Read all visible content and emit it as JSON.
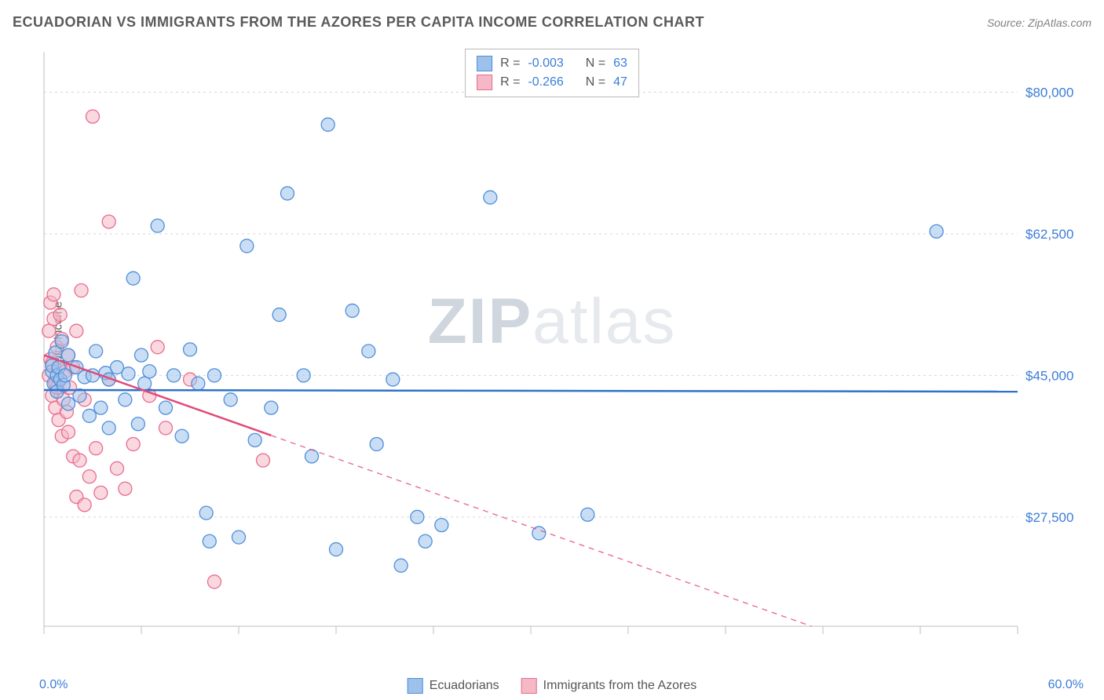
{
  "header": {
    "title": "ECUADORIAN VS IMMIGRANTS FROM THE AZORES PER CAPITA INCOME CORRELATION CHART",
    "source_prefix": "Source: ",
    "source_name": "ZipAtlas.com"
  },
  "watermark": {
    "part1": "ZIP",
    "part2": "atlas"
  },
  "y_axis": {
    "label": "Per Capita Income"
  },
  "chart": {
    "type": "scatter",
    "background_color": "#ffffff",
    "grid_color": "#d6d6d6",
    "axis_color": "#bfbfbf",
    "tick_color": "#bfbfbf",
    "xlim": [
      0,
      60
    ],
    "ylim": [
      14000,
      85000
    ],
    "x_ticks": [
      0,
      6,
      12,
      18,
      24,
      30,
      36,
      42,
      48,
      54,
      60
    ],
    "y_grid": [
      27500,
      45000,
      62500,
      80000
    ],
    "y_tick_labels": [
      "$27,500",
      "$45,000",
      "$62,500",
      "$80,000"
    ],
    "y_tick_color": "#3b7dd8",
    "y_tick_fontsize": 17,
    "x_start_label": "0.0%",
    "x_end_label": "60.0%",
    "marker_radius": 8.5,
    "marker_stroke_width": 1.3,
    "trend_line_width": 2.5
  },
  "series": {
    "blue": {
      "label": "Ecuadorians",
      "fill": "#9cc2ec",
      "fill_opacity": 0.55,
      "stroke": "#4f8fd9",
      "R": "-0.003",
      "N": "63",
      "trend": {
        "y_at_x0": 43200,
        "y_at_x60": 43000,
        "color": "#2f72c9"
      },
      "points": [
        [
          0.5,
          45500
        ],
        [
          0.5,
          46200
        ],
        [
          0.6,
          44000
        ],
        [
          0.7,
          47800
        ],
        [
          0.8,
          43000
        ],
        [
          0.8,
          45000
        ],
        [
          0.9,
          46000
        ],
        [
          1.0,
          44500
        ],
        [
          1.1,
          49200
        ],
        [
          1.2,
          43800
        ],
        [
          1.3,
          45000
        ],
        [
          1.5,
          41500
        ],
        [
          1.5,
          47500
        ],
        [
          2.0,
          46000
        ],
        [
          2.2,
          42500
        ],
        [
          2.5,
          44800
        ],
        [
          2.8,
          40000
        ],
        [
          3.0,
          45000
        ],
        [
          3.2,
          48000
        ],
        [
          3.5,
          41000
        ],
        [
          3.8,
          45300
        ],
        [
          4.0,
          38500
        ],
        [
          4.0,
          44500
        ],
        [
          4.5,
          46000
        ],
        [
          5.0,
          42000
        ],
        [
          5.2,
          45200
        ],
        [
          5.5,
          57000
        ],
        [
          5.8,
          39000
        ],
        [
          6.0,
          47500
        ],
        [
          6.2,
          44000
        ],
        [
          6.5,
          45500
        ],
        [
          7.0,
          63500
        ],
        [
          7.5,
          41000
        ],
        [
          8.0,
          45000
        ],
        [
          8.5,
          37500
        ],
        [
          9.0,
          48200
        ],
        [
          9.5,
          44000
        ],
        [
          10.0,
          28000
        ],
        [
          10.2,
          24500
        ],
        [
          10.5,
          45000
        ],
        [
          11.5,
          42000
        ],
        [
          12.0,
          25000
        ],
        [
          12.5,
          61000
        ],
        [
          13.0,
          37000
        ],
        [
          14.0,
          41000
        ],
        [
          14.5,
          52500
        ],
        [
          15.0,
          67500
        ],
        [
          16.0,
          45000
        ],
        [
          16.5,
          35000
        ],
        [
          17.5,
          76000
        ],
        [
          18.0,
          23500
        ],
        [
          19.0,
          53000
        ],
        [
          20.0,
          48000
        ],
        [
          20.5,
          36500
        ],
        [
          21.5,
          44500
        ],
        [
          22.0,
          21500
        ],
        [
          23.0,
          27500
        ],
        [
          23.5,
          24500
        ],
        [
          24.5,
          26500
        ],
        [
          27.5,
          67000
        ],
        [
          30.5,
          25500
        ],
        [
          33.5,
          27800
        ],
        [
          55.0,
          62800
        ]
      ]
    },
    "pink": {
      "label": "Immigrants from the Azores",
      "fill": "#f5b8c7",
      "fill_opacity": 0.55,
      "stroke": "#e76d8e",
      "R": "-0.266",
      "N": "47",
      "trend": {
        "y_at_x0": 47500,
        "y_at_x60": 5000,
        "color": "#e24a77",
        "solid_until_x": 14,
        "dash": "7 6"
      },
      "points": [
        [
          0.3,
          50500
        ],
        [
          0.3,
          45000
        ],
        [
          0.4,
          54000
        ],
        [
          0.4,
          47000
        ],
        [
          0.5,
          42500
        ],
        [
          0.5,
          46500
        ],
        [
          0.6,
          52000
        ],
        [
          0.6,
          55000
        ],
        [
          0.7,
          44000
        ],
        [
          0.7,
          41000
        ],
        [
          0.8,
          48500
        ],
        [
          0.8,
          43500
        ],
        [
          0.9,
          39500
        ],
        [
          0.9,
          46000
        ],
        [
          1.0,
          52500
        ],
        [
          1.0,
          44500
        ],
        [
          1.1,
          37500
        ],
        [
          1.1,
          49500
        ],
        [
          1.2,
          42000
        ],
        [
          1.3,
          45500
        ],
        [
          1.4,
          40500
        ],
        [
          1.5,
          47500
        ],
        [
          1.5,
          38000
        ],
        [
          1.6,
          43500
        ],
        [
          1.8,
          35000
        ],
        [
          1.8,
          46000
        ],
        [
          2.0,
          30000
        ],
        [
          2.0,
          50500
        ],
        [
          2.2,
          34500
        ],
        [
          2.3,
          55500
        ],
        [
          2.5,
          29000
        ],
        [
          2.5,
          42000
        ],
        [
          2.8,
          32500
        ],
        [
          3.0,
          77000
        ],
        [
          3.2,
          36000
        ],
        [
          3.5,
          30500
        ],
        [
          4.0,
          44500
        ],
        [
          4.0,
          64000
        ],
        [
          4.5,
          33500
        ],
        [
          5.0,
          31000
        ],
        [
          5.5,
          36500
        ],
        [
          6.5,
          42500
        ],
        [
          7.0,
          48500
        ],
        [
          7.5,
          38500
        ],
        [
          9.0,
          44500
        ],
        [
          10.5,
          19500
        ],
        [
          13.5,
          34500
        ]
      ]
    }
  },
  "stats_box": {
    "r_label": "R = ",
    "n_label": "N = "
  }
}
